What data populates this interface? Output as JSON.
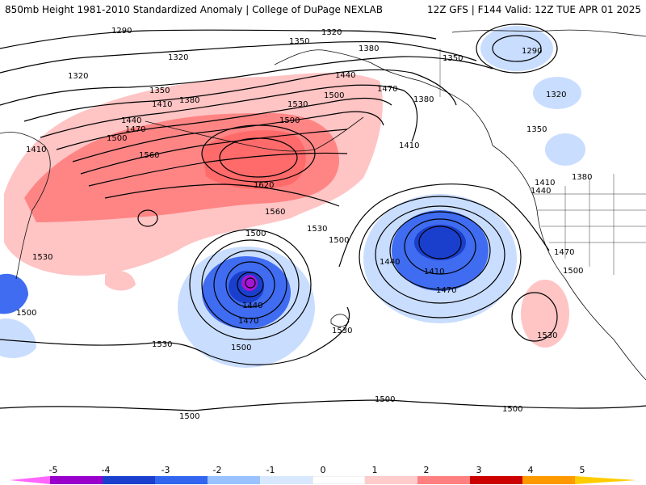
{
  "header": {
    "title_left": "850mb Height 1981-2010 Standardized Anomaly | College of DuPage NEXLAB",
    "title_right": "12Z GFS | F144 Valid: 12Z TUE APR 01 2025"
  },
  "colorbar": {
    "labels": [
      "-5",
      "-4",
      "-3",
      "-2",
      "-1",
      "0",
      "1",
      "2",
      "3",
      "4",
      "5"
    ],
    "colors": [
      "#ff66ff",
      "#9900cc",
      "#1a3fcc",
      "#3366ee",
      "#99c2ff",
      "#d7e8ff",
      "#ffffff",
      "#ffcccc",
      "#ff8080",
      "#ff3333",
      "#cc0000",
      "#ff9900",
      "#ffcc00"
    ]
  },
  "contour_labels": {
    "c1290a": "1290",
    "c1290b": "1290",
    "c1320a": "1320",
    "c1320b": "1320",
    "c1320c": "1320",
    "c1320d": "1320",
    "c1350a": "1350",
    "c1350b": "1350",
    "c1350c": "1350",
    "c1350d": "1350",
    "c1380a": "1380",
    "c1380b": "1380",
    "c1380c": "1380",
    "c1380d": "1380",
    "c1410a": "1410",
    "c1410b": "1410",
    "c1410c": "1410",
    "c1410d": "1410",
    "c1410e": "1410",
    "c1440a": "1440",
    "c1440b": "1440",
    "c1440c": "1440",
    "c1440d": "1440",
    "c1440e": "1440",
    "c1470a": "1470",
    "c1470b": "1470",
    "c1470c": "1470",
    "c1470d": "1470",
    "c1470e": "1470",
    "c1500a": "1500",
    "c1500b": "1500",
    "c1500c": "1500",
    "c1500d": "1500",
    "c1500e": "1500",
    "c1500f": "1500",
    "c1500g": "1500",
    "c1500h": "1500",
    "c1500i": "1500",
    "c1500j": "1500",
    "c1530a": "1530",
    "c1530b": "1530",
    "c1530c": "1530",
    "c1530d": "1530",
    "c1530e": "1530",
    "c1530f": "1530",
    "c1560a": "1560",
    "c1560b": "1560",
    "c1590": "1590",
    "c1620": "1620"
  }
}
